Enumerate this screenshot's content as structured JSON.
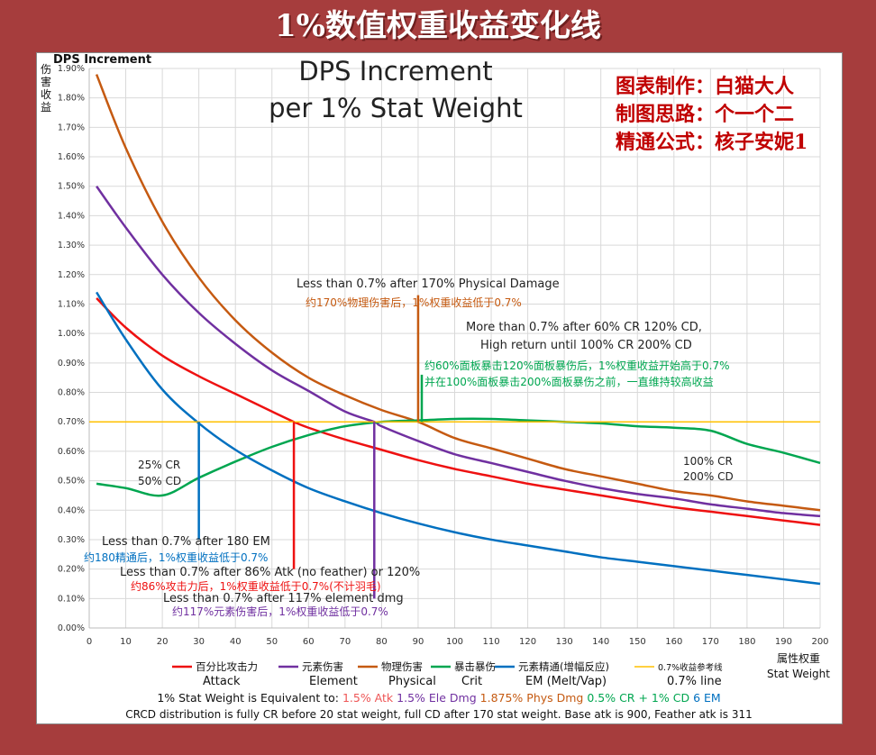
{
  "banner": {
    "title": "1%数值权重收益变化线"
  },
  "credits": [
    "图表制作：白猫大人",
    "制图思路：个一个二",
    "精通公式：核子安妮1"
  ],
  "colors": {
    "atk": "#ee1111",
    "element": "#7030a0",
    "physical": "#c55a11",
    "crit": "#00a650",
    "em": "#0070c0",
    "ref": "#ffc000",
    "credits_fill": "#c00000"
  },
  "chart_data": {
    "type": "line",
    "title": [
      "DPS Increment",
      "per 1% Stat Weight"
    ],
    "ylabel_en": "DPS Increment",
    "ylabel_cn": "伤害收益",
    "xlabel_cn": "属性权重",
    "xlabel_en": "Stat Weight",
    "xlim": [
      0,
      200
    ],
    "ylim": [
      0,
      1.9
    ],
    "x_ticks": [
      0,
      10,
      20,
      30,
      40,
      50,
      60,
      70,
      80,
      90,
      100,
      110,
      120,
      130,
      140,
      150,
      160,
      170,
      180,
      190,
      200
    ],
    "y_ticks": [
      "0.00%",
      "0.10%",
      "0.20%",
      "0.30%",
      "0.40%",
      "0.50%",
      "0.60%",
      "0.70%",
      "0.80%",
      "0.90%",
      "1.00%",
      "1.10%",
      "1.20%",
      "1.30%",
      "1.40%",
      "1.50%",
      "1.60%",
      "1.70%",
      "1.80%",
      "1.90%"
    ],
    "grid": true,
    "legend_position": "bottom",
    "series": [
      {
        "key": "atk",
        "name": "百分比攻击力",
        "name_en": "Attack",
        "x": [
          2,
          10,
          20,
          30,
          40,
          50,
          56,
          60,
          70,
          80,
          90,
          100,
          110,
          120,
          130,
          140,
          150,
          160,
          170,
          180,
          190,
          200
        ],
        "y": [
          1.12,
          1.02,
          0.925,
          0.855,
          0.795,
          0.735,
          0.7,
          0.68,
          0.64,
          0.605,
          0.57,
          0.54,
          0.515,
          0.49,
          0.47,
          0.45,
          0.43,
          0.41,
          0.395,
          0.38,
          0.365,
          0.35
        ]
      },
      {
        "key": "element",
        "name": "元素伤害",
        "name_en": "Element",
        "x": [
          2,
          10,
          20,
          30,
          40,
          50,
          60,
          70,
          78,
          80,
          90,
          100,
          110,
          120,
          130,
          140,
          150,
          160,
          170,
          180,
          190,
          200
        ],
        "y": [
          1.5,
          1.36,
          1.2,
          1.07,
          0.965,
          0.875,
          0.805,
          0.735,
          0.7,
          0.685,
          0.635,
          0.59,
          0.56,
          0.53,
          0.5,
          0.475,
          0.455,
          0.44,
          0.42,
          0.405,
          0.39,
          0.38
        ]
      },
      {
        "key": "physical",
        "name": "物理伤害",
        "name_en": "Physical",
        "x": [
          2,
          10,
          20,
          30,
          40,
          50,
          60,
          70,
          80,
          90,
          100,
          110,
          120,
          130,
          140,
          150,
          160,
          170,
          180,
          190,
          200
        ],
        "y": [
          1.88,
          1.63,
          1.38,
          1.19,
          1.045,
          0.935,
          0.85,
          0.79,
          0.74,
          0.7,
          0.645,
          0.61,
          0.575,
          0.54,
          0.515,
          0.49,
          0.465,
          0.45,
          0.43,
          0.415,
          0.4
        ]
      },
      {
        "key": "crit",
        "name": "暴击暴伤",
        "name_en": "Crit",
        "x": [
          2,
          10,
          20,
          30,
          40,
          50,
          60,
          70,
          80,
          90,
          100,
          110,
          120,
          130,
          140,
          150,
          160,
          170,
          180,
          190,
          200
        ],
        "y": [
          0.49,
          0.475,
          0.45,
          0.51,
          0.565,
          0.615,
          0.655,
          0.685,
          0.7,
          0.705,
          0.71,
          0.71,
          0.705,
          0.7,
          0.695,
          0.685,
          0.68,
          0.67,
          0.625,
          0.595,
          0.56
        ]
      },
      {
        "key": "em",
        "name": "元素精通(增幅反应)",
        "name_en": "EM (Melt/Vap)",
        "x": [
          2,
          10,
          20,
          30,
          40,
          50,
          60,
          70,
          80,
          90,
          100,
          110,
          120,
          130,
          140,
          150,
          160,
          170,
          180,
          190,
          200
        ],
        "y": [
          1.14,
          0.98,
          0.81,
          0.695,
          0.605,
          0.535,
          0.475,
          0.43,
          0.39,
          0.355,
          0.325,
          0.3,
          0.28,
          0.26,
          0.24,
          0.225,
          0.21,
          0.195,
          0.18,
          0.165,
          0.15
        ]
      },
      {
        "key": "ref",
        "name": "0.7%收益参考线",
        "name_en": "0.7% line",
        "x": [
          0,
          200
        ],
        "y": [
          0.7,
          0.7
        ]
      }
    ],
    "markers": [
      {
        "key": "em",
        "x": 30,
        "y0": 0.3,
        "y1": 0.7
      },
      {
        "key": "atk",
        "x": 56,
        "y0": 0.2,
        "y1": 0.7
      },
      {
        "key": "element",
        "x": 78,
        "y0": 0.1,
        "y1": 0.7
      },
      {
        "key": "physical",
        "x": 90,
        "y0": 0.7,
        "y1": 1.13
      },
      {
        "key": "crit",
        "x": 91,
        "y0": 0.7,
        "y1": 0.86
      }
    ],
    "annotations": {
      "physical_en": "Less than 0.7% after 170% Physical Damage",
      "physical_cn": "约170%物理伤害后，1%权重收益低于0.7%",
      "crit_en_1": "More than 0.7% after 60% CR 120% CD,",
      "crit_en_2": "High return until 100% CR 200% CD",
      "crit_cn_1": "约60%面板暴击120%面板暴伤后，1%权重收益开始高于0.7%",
      "crit_cn_2": "并在100%面板暴击200%面板暴伤之前，一直维持较高收益",
      "cr25_1": "25% CR",
      "cr25_2": "50% CD",
      "cr100_1": "100% CR",
      "cr100_2": "200% CD",
      "em_en": "Less than 0.7% after 180 EM",
      "em_cn": "约180精通后，1%权重收益低于0.7%",
      "atk_en": "Less than 0.7% after 86% Atk (no feather) or 120%",
      "atk_cn": "约86%攻击力后，1%权重收益低于0.7%(不计羽毛)",
      "element_en": "Less than 0.7% after 117% element dmg",
      "element_cn": "约117%元素伤害后，1%权重收益低于0.7%"
    },
    "footer": {
      "equiv_prefix": "1% Stat Weight is Equivalent to: ",
      "equiv_atk": "1.5% Atk",
      "equiv_ele": "1.5% Ele Dmg",
      "equiv_phys": "1.875% Phys Dmg",
      "equiv_crit": "0.5% CR + 1% CD",
      "equiv_em": "6 EM",
      "note": "CRCD distribution is fully CR before 20 stat weight, full CD after 170 stat weight. Base atk is 900, Feather atk is 311"
    }
  }
}
